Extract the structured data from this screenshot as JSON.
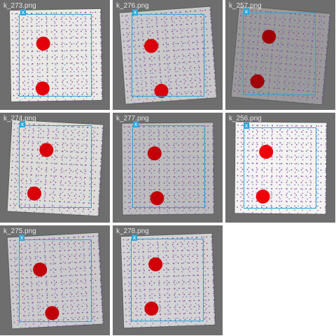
{
  "gallery": {
    "tiles": [
      {
        "label": "k_273.png",
        "tag": "x",
        "bg": "#e9e9e5",
        "spot_color": "#e4000b"
      },
      {
        "label": "k_276.png",
        "tag": "x",
        "bg": "#c9c9c9",
        "spot_color": "#d8000a"
      },
      {
        "label": "k_257.png",
        "tag": "x",
        "bg": "#9a9a9a",
        "spot_color": "#a00008"
      },
      {
        "label": "k_274.png",
        "tag": "x",
        "bg": "#dcdcd8",
        "spot_color": "#d80009"
      },
      {
        "label": "k_277.png",
        "tag": "x",
        "bg": "#bdbdbd",
        "spot_color": "#c20008"
      },
      {
        "label": "k_256.png",
        "tag": "x",
        "bg": "#f3f3f1",
        "spot_color": "#f0000b"
      },
      {
        "label": "k_275.png",
        "tag": "x",
        "bg": "#cbcbcb",
        "spot_color": "#c00008"
      },
      {
        "label": "k_278.png",
        "tag": "x",
        "bg": "#d3d3d3",
        "spot_color": "#d0000a"
      }
    ]
  },
  "colors": {
    "tile_frame": "#6e6e6e",
    "roi_border": "#2aa6d9",
    "page_background": "#ffffff"
  }
}
